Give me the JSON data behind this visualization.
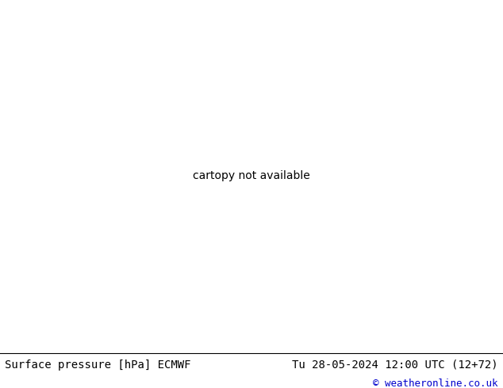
{
  "title": "Surface pressure [hPa] ECMWF",
  "datetime_str": "Tu 28-05-2024 12:00 UTC (12+72)",
  "copyright": "© weatheronline.co.uk",
  "bg_color": "#d3d3d3",
  "land_color": "#c8e8b4",
  "ocean_color": "#d3d3d3",
  "border_color": "#888888",
  "footer_bg": "#ffffff",
  "copyright_color": "#0000cc",
  "title_fontsize": 10,
  "datetime_fontsize": 10,
  "copyright_fontsize": 9,
  "map_lon_min": -175,
  "map_lon_max": -40,
  "map_lat_min": 12,
  "map_lat_max": 82,
  "contour_lw_black": 1.8,
  "contour_lw_blue": 1.0,
  "contour_lw_red": 1.0
}
